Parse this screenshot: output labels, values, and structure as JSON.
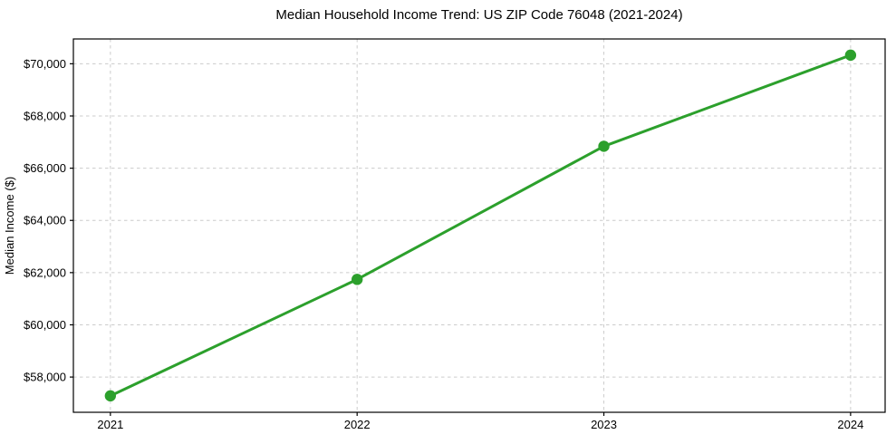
{
  "chart_data": {
    "type": "line",
    "title": "Median Household Income Trend: US ZIP Code 76048 (2021-2024)",
    "xlabel": "",
    "ylabel": "Median Income ($)",
    "x": [
      2021,
      2022,
      2023,
      2024
    ],
    "x_tick_labels": [
      "2021",
      "2022",
      "2023",
      "2024"
    ],
    "series": [
      {
        "name": "Median Household Income",
        "values": [
          57280,
          61740,
          66840,
          70330
        ]
      }
    ],
    "y_ticks": [
      58000,
      60000,
      62000,
      64000,
      66000,
      68000,
      70000
    ],
    "y_tick_labels": [
      "$58,000",
      "$60,000",
      "$62,000",
      "$64,000",
      "$66,000",
      "$68,000",
      "$70,000"
    ],
    "xlim": [
      2020.85,
      2024.14
    ],
    "ylim": [
      56650,
      70950
    ],
    "grid": true,
    "grid_style": "dashed",
    "legend": "none",
    "colors": {
      "line": "#2ca02c",
      "marker": "#2ca02c",
      "grid": "#cccccc",
      "axis": "#000000",
      "text": "#000000",
      "background": "#ffffff"
    }
  }
}
